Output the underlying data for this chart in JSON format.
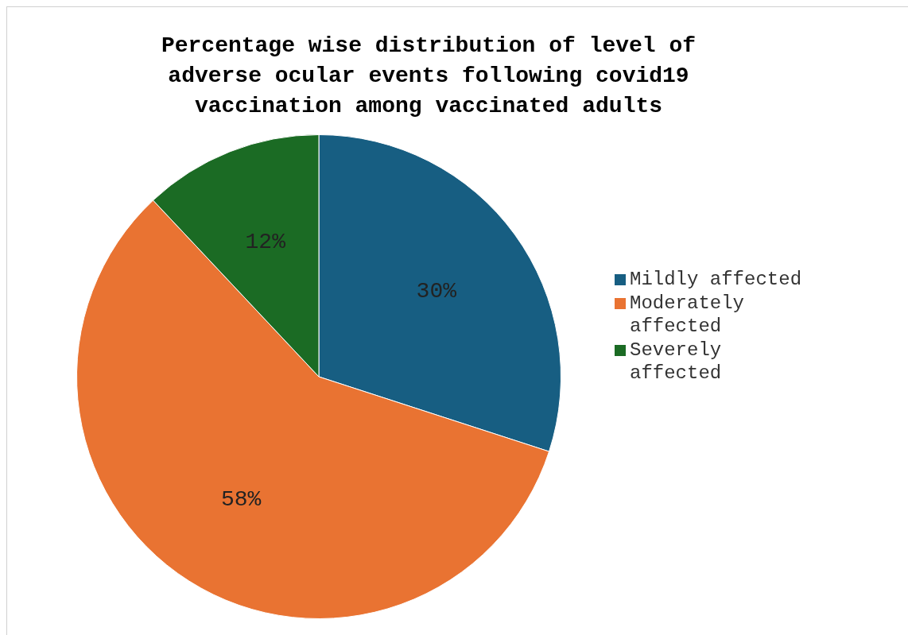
{
  "chart_data": {
    "type": "pie",
    "title": "Percentage wise distribution of level of adverse ocular events following covid19 vaccination among vaccinated adults",
    "categories": [
      "Mildly affected",
      "Moderately affected",
      "Severely affected"
    ],
    "values": [
      30,
      58,
      12
    ],
    "colors": [
      "#175e82",
      "#e97332",
      "#1b6b24"
    ],
    "value_labels": [
      "30%",
      "58%",
      "12%"
    ],
    "legend": "right"
  }
}
